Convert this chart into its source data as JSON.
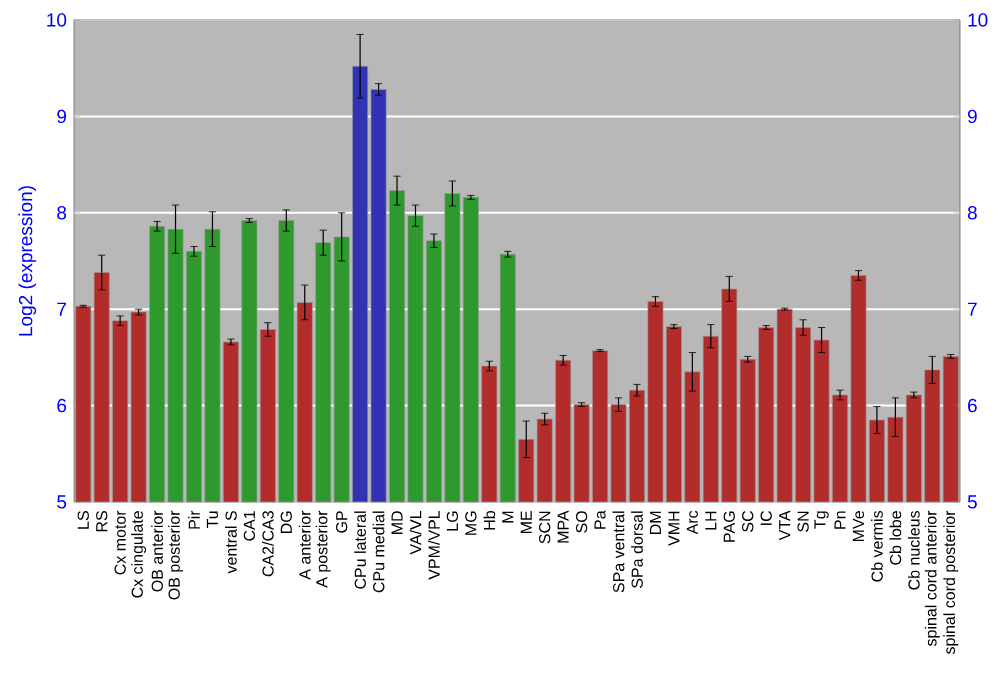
{
  "chart_data": {
    "type": "bar",
    "ylabel": "Log2 (expression)",
    "categories": [
      "LS",
      "RS",
      "Cx motor",
      "Cx cingulate",
      "OB anterior",
      "OB posterior",
      "Pir",
      "Tu",
      "ventral S",
      "CA1",
      "CA2/CA3",
      "DG",
      "A anterior",
      "A posterior",
      "GP",
      "CPu lateral",
      "CPu medial",
      "MD",
      "VA/VL",
      "VPM/VPL",
      "LG",
      "MG",
      "Hb",
      "M",
      "ME",
      "SCN",
      "MPA",
      "SO",
      "Pa",
      "SPa ventral",
      "SPa dorsal",
      "DM",
      "VMH",
      "Arc",
      "LH",
      "PAG",
      "SC",
      "IC",
      "VTA",
      "SN",
      "Tg",
      "Pn",
      "MVe",
      "Cb vermis",
      "Cb lobe",
      "Cb nucleus",
      "spinal cord anterior",
      "spinal cord posterior"
    ],
    "values": [
      7.03,
      7.38,
      6.88,
      6.97,
      7.86,
      7.83,
      7.6,
      7.83,
      6.66,
      7.92,
      6.79,
      7.92,
      7.07,
      7.69,
      7.75,
      9.52,
      9.28,
      8.23,
      7.97,
      7.71,
      8.2,
      8.16,
      6.41,
      7.57,
      5.65,
      5.86,
      6.47,
      6.01,
      6.57,
      6.01,
      6.16,
      7.08,
      6.82,
      6.35,
      6.72,
      7.21,
      6.48,
      6.81,
      7.0,
      6.81,
      6.68,
      6.11,
      7.35,
      5.85,
      5.88,
      6.11,
      6.37,
      6.51
    ],
    "errors": [
      0.01,
      0.18,
      0.05,
      0.03,
      0.05,
      0.25,
      0.05,
      0.18,
      0.03,
      0.02,
      0.07,
      0.11,
      0.18,
      0.13,
      0.25,
      0.33,
      0.06,
      0.15,
      0.11,
      0.07,
      0.13,
      0.02,
      0.05,
      0.03,
      0.19,
      0.06,
      0.05,
      0.02,
      0.01,
      0.07,
      0.06,
      0.05,
      0.02,
      0.2,
      0.12,
      0.13,
      0.03,
      0.02,
      0.01,
      0.08,
      0.13,
      0.05,
      0.05,
      0.14,
      0.2,
      0.03,
      0.14,
      0.02
    ],
    "colors": [
      "#b22c2c",
      "#b22c2c",
      "#b22c2c",
      "#b22c2c",
      "#2e9a2e",
      "#2e9a2e",
      "#2e9a2e",
      "#2e9a2e",
      "#b22c2c",
      "#2e9a2e",
      "#b22c2c",
      "#2e9a2e",
      "#b22c2c",
      "#2e9a2e",
      "#2e9a2e",
      "#3232b4",
      "#3232b4",
      "#2e9a2e",
      "#2e9a2e",
      "#2e9a2e",
      "#2e9a2e",
      "#2e9a2e",
      "#b22c2c",
      "#2e9a2e",
      "#b22c2c",
      "#b22c2c",
      "#b22c2c",
      "#b22c2c",
      "#b22c2c",
      "#b22c2c",
      "#b22c2c",
      "#b22c2c",
      "#b22c2c",
      "#b22c2c",
      "#b22c2c",
      "#b22c2c",
      "#b22c2c",
      "#b22c2c",
      "#b22c2c",
      "#b22c2c",
      "#b22c2c",
      "#b22c2c",
      "#b22c2c",
      "#b22c2c",
      "#b22c2c",
      "#b22c2c",
      "#b22c2c",
      "#b22c2c"
    ],
    "ylim": [
      5,
      10
    ],
    "yticks": [
      5,
      6,
      7,
      8,
      9,
      10
    ],
    "y2lim": [
      5,
      10
    ],
    "y2ticks": [
      5,
      6,
      7,
      8,
      9,
      10
    ],
    "grid": "y"
  }
}
